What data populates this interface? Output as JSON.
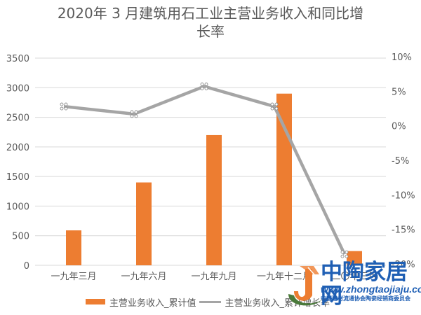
{
  "chart_data": {
    "type": "bar+line",
    "title": "2020年 3 月建筑用石工业主营业务收入和同比增长率",
    "title_lines": [
      "2020年 3 月建筑用石工业主营业务收入和同比增",
      "长率"
    ],
    "categories": [
      "一九年三月",
      "一九年六月",
      "一九年九月",
      "一九年十二月",
      "二〇年三月"
    ],
    "series": [
      {
        "name": "主营业务收入_累计值",
        "type": "bar",
        "axis": "left",
        "color": "#ED7D31",
        "values": [
          590,
          1400,
          2200,
          2900,
          240
        ]
      },
      {
        "name": "主营业务收入_累计增长率",
        "type": "line",
        "axis": "right",
        "color": "#A5A5A5",
        "unit": "%",
        "values": [
          3.0,
          1.9,
          5.9,
          3.0,
          -18.4
        ]
      }
    ],
    "left_axis": {
      "ylim": [
        0,
        3500
      ],
      "ticks": [
        0,
        500,
        1000,
        1500,
        2000,
        2500,
        3000,
        3500
      ]
    },
    "right_axis": {
      "ylim": [
        -20,
        10
      ],
      "ticks": [
        "10%",
        "5%",
        "0%",
        "-5%",
        "-10%",
        "-15%",
        "-20%"
      ]
    },
    "xlabel": "",
    "ylabel": "",
    "grid": true,
    "legend_position": "bottom"
  },
  "legend": {
    "bar_label": "主营业务收入_累计值",
    "line_label": "主营业务收入_累计增长率"
  },
  "watermark": {
    "name": "中陶家居网",
    "url": "www.zhongtaojiaju.com",
    "subtitle": "中国建材流通协会陶瓷经销商委员会"
  },
  "colors": {
    "bar": "#ED7D31",
    "line": "#A5A5A5",
    "grid": "#D9D9D9",
    "text": "#595959",
    "watermark": "#1F5FB4"
  }
}
